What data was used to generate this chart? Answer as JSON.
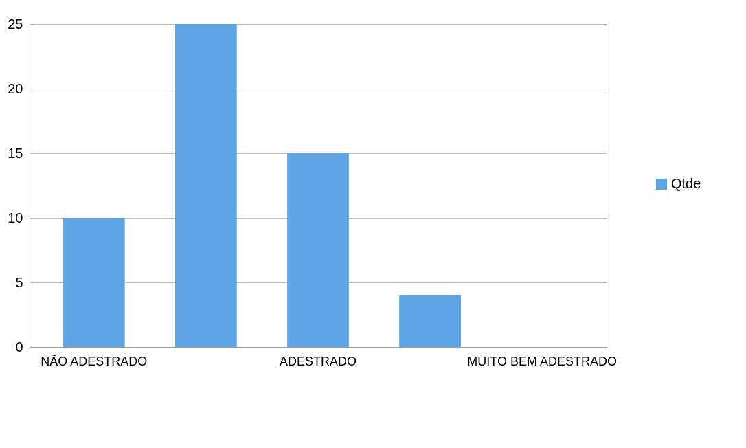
{
  "chart_data": {
    "type": "bar",
    "categories": [
      "NÃO ADESTRADO",
      null,
      "ADESTRADO",
      null,
      "MUITO BEM ADESTRADO"
    ],
    "series": [
      {
        "name": "Qtde",
        "color": "#5ea5e6",
        "values": [
          10,
          25,
          15,
          4,
          null
        ]
      }
    ],
    "ylim": [
      0,
      25
    ],
    "yticks": [
      0,
      5,
      10,
      15,
      20,
      25
    ],
    "grid": "y",
    "legend": "right"
  }
}
